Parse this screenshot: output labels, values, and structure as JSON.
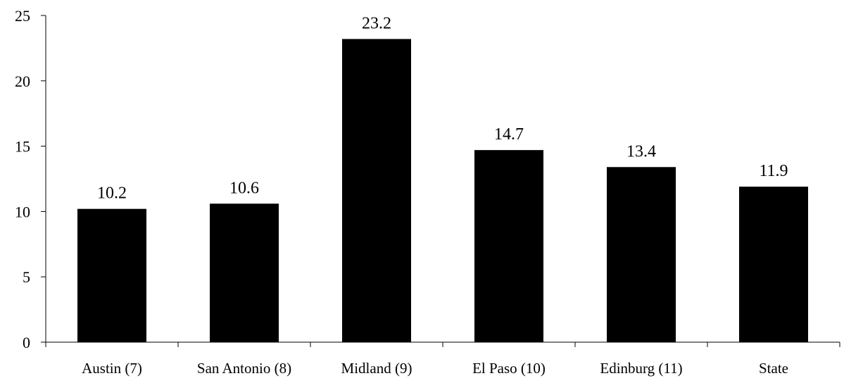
{
  "chart_data": {
    "type": "bar",
    "title": "",
    "xlabel": "",
    "ylabel": "",
    "categories": [
      "Austin (7)",
      "San Antonio (8)",
      "Midland (9)",
      "El Paso (10)",
      "Edinburg (11)",
      "State"
    ],
    "values": [
      10.2,
      10.6,
      23.2,
      14.7,
      13.4,
      11.9
    ],
    "data_labels": [
      "10.2",
      "10.6",
      "23.2",
      "14.7",
      "13.4",
      "11.9"
    ],
    "ylim": [
      0,
      25
    ],
    "yticks": [
      0,
      5,
      10,
      15,
      20,
      25
    ],
    "ytick_labels": [
      "0",
      "5",
      "10",
      "15",
      "20",
      "25"
    ],
    "grid": false,
    "legend": "none",
    "bar_color": "#000000"
  }
}
